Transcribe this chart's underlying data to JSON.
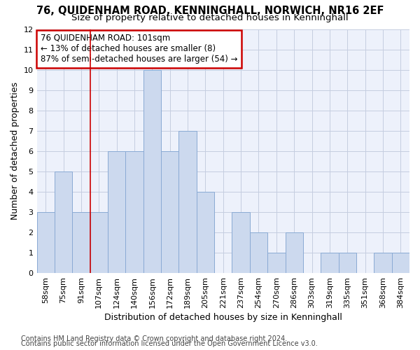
{
  "title": "76, QUIDENHAM ROAD, KENNINGHALL, NORWICH, NR16 2EF",
  "subtitle": "Size of property relative to detached houses in Kenninghall",
  "xlabel": "Distribution of detached houses by size in Kenninghall",
  "ylabel": "Number of detached properties",
  "categories": [
    "58sqm",
    "75sqm",
    "91sqm",
    "107sqm",
    "124sqm",
    "140sqm",
    "156sqm",
    "172sqm",
    "189sqm",
    "205sqm",
    "221sqm",
    "237sqm",
    "254sqm",
    "270sqm",
    "286sqm",
    "303sqm",
    "319sqm",
    "335sqm",
    "351sqm",
    "368sqm",
    "384sqm"
  ],
  "values": [
    3,
    5,
    3,
    3,
    6,
    6,
    10,
    6,
    7,
    4,
    0,
    3,
    2,
    1,
    2,
    0,
    1,
    1,
    0,
    1,
    1
  ],
  "bar_color": "#ccd9ee",
  "bar_edge_color": "#8aaad4",
  "annotation_text": "76 QUIDENHAM ROAD: 101sqm\n← 13% of detached houses are smaller (8)\n87% of semi-detached houses are larger (54) →",
  "annotation_box_color": "#ffffff",
  "annotation_box_edge_color": "#cc0000",
  "vline_color": "#cc0000",
  "vline_x_index": 2.5,
  "ylim": [
    0,
    12
  ],
  "yticks": [
    0,
    1,
    2,
    3,
    4,
    5,
    6,
    7,
    8,
    9,
    10,
    11,
    12
  ],
  "footer1": "Contains HM Land Registry data © Crown copyright and database right 2024.",
  "footer2": "Contains public sector information licensed under the Open Government Licence v3.0.",
  "bg_color": "#edf1fb",
  "grid_color": "#c5cde0",
  "title_fontsize": 10.5,
  "subtitle_fontsize": 9.5,
  "axis_label_fontsize": 9,
  "tick_fontsize": 8,
  "ylabel_fontsize": 9,
  "footer_fontsize": 7
}
